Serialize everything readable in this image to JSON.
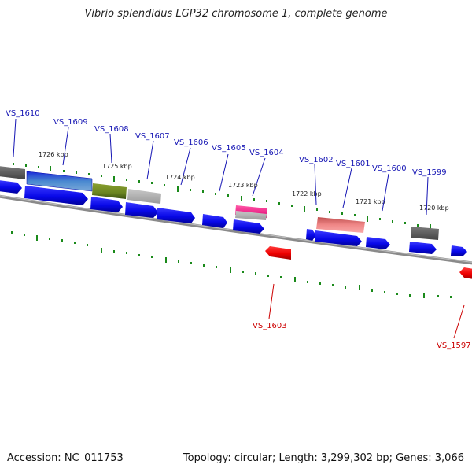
{
  "title": "Vibrio splendidus LGP32 chromosome 1, complete genome",
  "footer": {
    "accession": "Accession: NC_011753",
    "stats": "Topology: circular; Length: 3,299,302 bp; Genes: 3,066"
  },
  "kbp_labels": [
    "1726 kbp",
    "1725 kbp",
    "1724 kbp",
    "1723 kbp",
    "1722 kbp",
    "1721 kbp",
    "1720 kbp"
  ],
  "gene_labels": [
    {
      "name": "VS_1610",
      "color": "#1515b4"
    },
    {
      "name": "VS_1609",
      "color": "#1515b4"
    },
    {
      "name": "VS_1608",
      "color": "#1515b4"
    },
    {
      "name": "VS_1607",
      "color": "#1515b4"
    },
    {
      "name": "VS_1606",
      "color": "#1515b4"
    },
    {
      "name": "VS_1605",
      "color": "#1515b4"
    },
    {
      "name": "VS_1604",
      "color": "#1515b4"
    },
    {
      "name": "VS_1602",
      "color": "#1515b4"
    },
    {
      "name": "VS_1601",
      "color": "#1515b4"
    },
    {
      "name": "VS_1600",
      "color": "#1515b4"
    },
    {
      "name": "VS_1599",
      "color": "#1515b4"
    },
    {
      "name": "VS_1603",
      "color": "#cc0000"
    },
    {
      "name": "VS_1597",
      "color": "#cc0000"
    }
  ],
  "colors": {
    "cds_forward": "#0a0aee",
    "cds_reverse": "#ee0000",
    "tick": "#1a8a1a",
    "backbone": "#8a8a8a"
  }
}
